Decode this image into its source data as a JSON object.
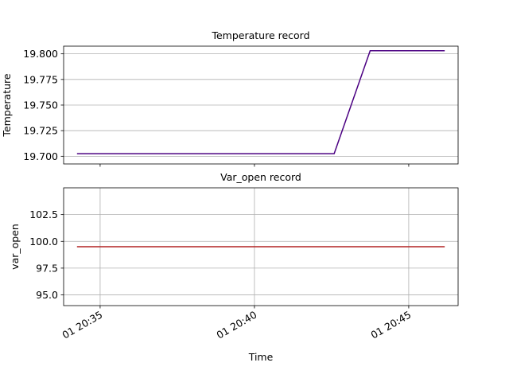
{
  "chart_data": [
    {
      "type": "line",
      "title": "Temperature record",
      "xlabel": "",
      "ylabel": "Temperature",
      "ylim": [
        19.6925,
        19.8075
      ],
      "yticks": [
        19.7,
        19.725,
        19.75,
        19.775,
        19.8
      ],
      "ytick_labels": [
        "19.700",
        "19.725",
        "19.750",
        "19.775",
        "19.800"
      ],
      "grid": "y",
      "series": [
        {
          "color": "#4b0082",
          "x": [
            "20:34:15",
            "20:42:35",
            "20:43:45",
            "20:46:10"
          ],
          "y": [
            19.7025,
            19.7025,
            19.803,
            19.803
          ]
        }
      ]
    },
    {
      "type": "line",
      "title": "Var_open record",
      "xlabel": "Time",
      "ylabel": "var_open",
      "ylim": [
        94.0,
        105.0
      ],
      "yticks": [
        95.0,
        97.5,
        100.0,
        102.5
      ],
      "ytick_labels": [
        "95.0",
        "97.5",
        "100.0",
        "102.5"
      ],
      "xticks": [
        "20:35",
        "20:40",
        "20:45"
      ],
      "xtick_labels": [
        "01 20:35",
        "01 20:40",
        "01 20:45"
      ],
      "grid": "both",
      "series": [
        {
          "color": "#b22222",
          "x": [
            "20:34:15",
            "20:46:10"
          ],
          "y": [
            99.5,
            99.5
          ]
        }
      ]
    }
  ]
}
